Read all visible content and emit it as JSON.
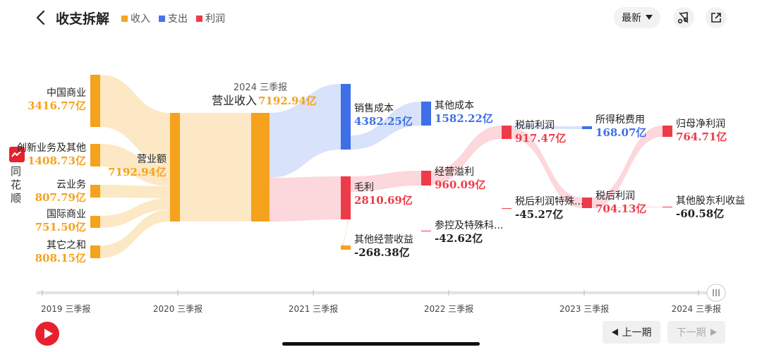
{
  "header": {
    "title": "收支拆解",
    "legend": [
      {
        "label": "收入",
        "color": "#f5a623"
      },
      {
        "label": "支出",
        "color": "#4a72e8"
      },
      {
        "label": "利润",
        "color": "#ee3b4a"
      }
    ],
    "sort_label": "最新"
  },
  "sidebar_logo": {
    "text": "同花顺"
  },
  "chart_data": {
    "type": "sankey",
    "title": "2024 三季报",
    "unit": "亿",
    "nodes": [
      {
        "id": "cn",
        "name": "中国商业",
        "value": "3416.77亿",
        "kind": "income"
      },
      {
        "id": "new",
        "name": "创新业务及其他",
        "value": "1408.73亿",
        "kind": "income"
      },
      {
        "id": "cloud",
        "name": "云业务",
        "value": "807.79亿",
        "kind": "income"
      },
      {
        "id": "intl",
        "name": "国际商业",
        "value": "751.50亿",
        "kind": "income"
      },
      {
        "id": "other",
        "name": "其它之和",
        "value": "808.15亿",
        "kind": "income"
      },
      {
        "id": "rev",
        "name": "营业额",
        "value": "7192.94亿",
        "kind": "income"
      },
      {
        "id": "opinc",
        "name": "营业收入",
        "value": "7192.94亿",
        "kind": "income"
      },
      {
        "id": "cogs",
        "name": "销售成本",
        "value": "4382.25亿",
        "kind": "expense"
      },
      {
        "id": "gross",
        "name": "毛利",
        "value": "2810.69亿",
        "kind": "profit"
      },
      {
        "id": "otherop",
        "name": "其他经营收益",
        "value": "-268.38亿",
        "kind": "income"
      },
      {
        "id": "othcost",
        "name": "其他成本",
        "value": "1582.22亿",
        "kind": "expense"
      },
      {
        "id": "opsur",
        "name": "经营溢利",
        "value": "960.09亿",
        "kind": "profit"
      },
      {
        "id": "equity",
        "name": "参控及特殊科...",
        "value": "-42.62亿",
        "kind": "profit"
      },
      {
        "id": "pretax",
        "name": "税前利润",
        "value": "917.47亿",
        "kind": "profit"
      },
      {
        "id": "posttaxsp",
        "name": "税后利润特殊...",
        "value": "-45.27亿",
        "kind": "profit"
      },
      {
        "id": "tax",
        "name": "所得税费用",
        "value": "168.07亿",
        "kind": "expense"
      },
      {
        "id": "posttax",
        "name": "税后利润",
        "value": "704.13亿",
        "kind": "profit"
      },
      {
        "id": "parent",
        "name": "归母净利润",
        "value": "764.71亿",
        "kind": "profit"
      },
      {
        "id": "minority",
        "name": "其他股东利收益",
        "value": "-60.58亿",
        "kind": "profit"
      }
    ],
    "links": [
      {
        "source": "cn",
        "target": "rev",
        "value": 3416.77
      },
      {
        "source": "new",
        "target": "rev",
        "value": 1408.73
      },
      {
        "source": "cloud",
        "target": "rev",
        "value": 807.79
      },
      {
        "source": "intl",
        "target": "rev",
        "value": 751.5
      },
      {
        "source": "other",
        "target": "rev",
        "value": 808.15
      },
      {
        "source": "rev",
        "target": "opinc",
        "value": 7192.94
      },
      {
        "source": "opinc",
        "target": "cogs",
        "value": 4382.25
      },
      {
        "source": "opinc",
        "target": "gross",
        "value": 2810.69
      },
      {
        "source": "gross",
        "target": "otherop",
        "value": -268.38
      },
      {
        "source": "cogs",
        "target": "othcost",
        "value": 1582.22
      },
      {
        "source": "gross",
        "target": "opsur",
        "value": 960.09
      },
      {
        "source": "opsur",
        "target": "equity",
        "value": -42.62
      },
      {
        "source": "opsur",
        "target": "pretax",
        "value": 917.47
      },
      {
        "source": "pretax",
        "target": "tax",
        "value": 168.07
      },
      {
        "source": "pretax",
        "target": "posttax",
        "value": 704.13
      },
      {
        "source": "pretax",
        "target": "posttaxsp",
        "value": -45.27
      },
      {
        "source": "posttax",
        "target": "parent",
        "value": 764.71
      },
      {
        "source": "posttax",
        "target": "minority",
        "value": -60.58
      }
    ]
  },
  "timeline": {
    "ticks": [
      "2019 三季报",
      "2020 三季报",
      "2021 三季报",
      "2022 三季报",
      "2023 三季报",
      "2024 三季报"
    ],
    "current": "2024 三季报"
  },
  "nav": {
    "prev_label": "上一期",
    "next_label": "下一期"
  }
}
